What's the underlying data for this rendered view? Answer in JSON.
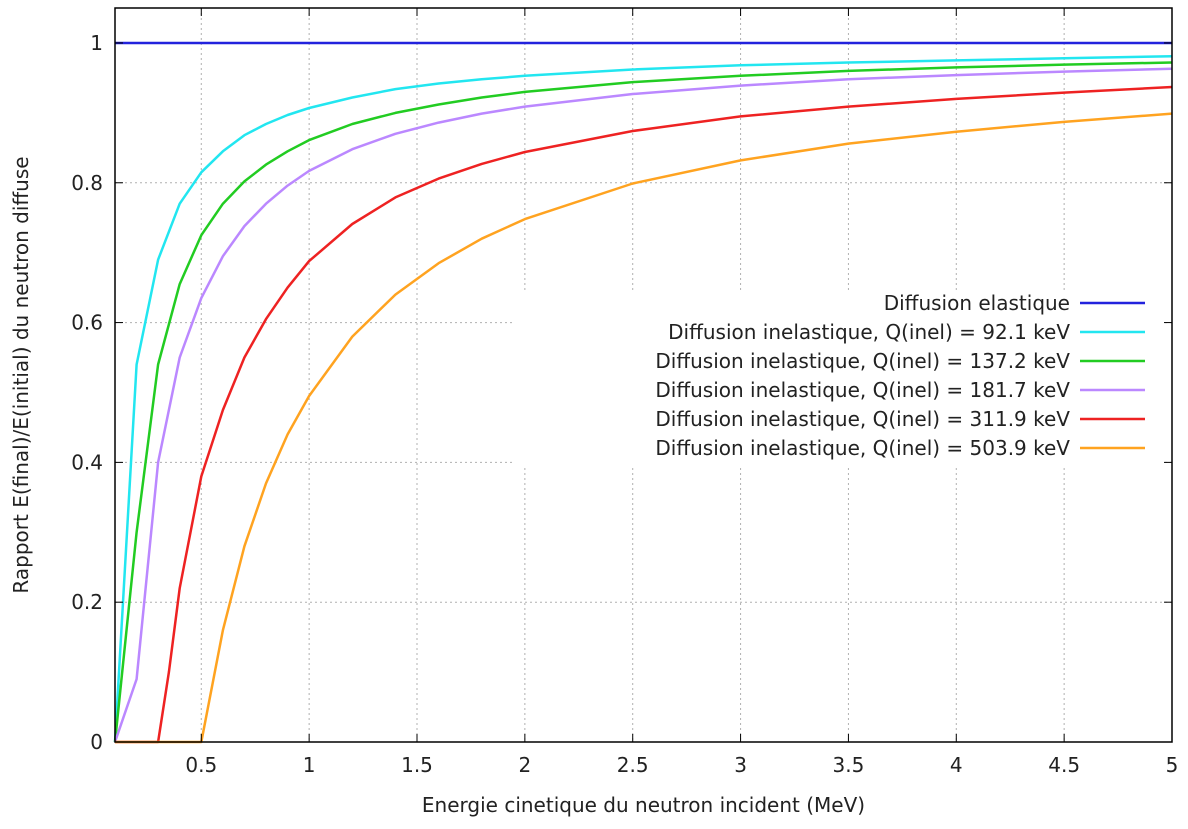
{
  "chart_data": {
    "type": "line",
    "xlabel": "Energie cinetique du neutron incident (MeV)",
    "ylabel": "Rapport E(final)/E(initial) du neutron diffuse",
    "xlim": [
      0.1,
      5
    ],
    "ylim": [
      0,
      1.05
    ],
    "x_ticks": [
      "0.5",
      "1",
      "1.5",
      "2",
      "2.5",
      "3",
      "3.5",
      "4",
      "4.5",
      "5"
    ],
    "y_ticks": [
      "0",
      "0.2",
      "0.4",
      "0.6",
      "0.8",
      "1"
    ],
    "grid": true,
    "legend_position": "center-right",
    "series": [
      {
        "name": "Diffusion elastique",
        "color": "#2222dd",
        "x": [
          0.1,
          5
        ],
        "y": [
          1,
          1
        ]
      },
      {
        "name": "Diffusion inelastique, Q(inel) = 92.1 keV",
        "color": "#22e6f0",
        "x": [
          0.1,
          0.2,
          0.3,
          0.4,
          0.5,
          0.6,
          0.7,
          0.8,
          0.9,
          1.0,
          1.2,
          1.4,
          1.6,
          1.8,
          2.0,
          2.5,
          3.0,
          3.5,
          4.0,
          4.5,
          5.0
        ],
        "y": [
          0.0,
          0.54,
          0.69,
          0.77,
          0.815,
          0.845,
          0.868,
          0.884,
          0.897,
          0.907,
          0.922,
          0.934,
          0.942,
          0.948,
          0.953,
          0.962,
          0.968,
          0.972,
          0.975,
          0.978,
          0.981
        ]
      },
      {
        "name": "Diffusion inelastique, Q(inel) = 137.2 keV",
        "color": "#22cc22",
        "x": [
          0.1,
          0.2,
          0.3,
          0.4,
          0.5,
          0.6,
          0.7,
          0.8,
          0.9,
          1.0,
          1.2,
          1.4,
          1.6,
          1.8,
          2.0,
          2.5,
          3.0,
          3.5,
          4.0,
          4.5,
          5.0
        ],
        "y": [
          0.0,
          0.3,
          0.54,
          0.655,
          0.725,
          0.77,
          0.802,
          0.826,
          0.845,
          0.861,
          0.884,
          0.9,
          0.912,
          0.922,
          0.93,
          0.944,
          0.953,
          0.96,
          0.965,
          0.969,
          0.972
        ]
      },
      {
        "name": "Diffusion inelastique, Q(inel) = 181.7 keV",
        "color": "#bb88ff",
        "x": [
          0.1,
          0.2,
          0.3,
          0.4,
          0.5,
          0.6,
          0.7,
          0.8,
          0.9,
          1.0,
          1.2,
          1.4,
          1.6,
          1.8,
          2.0,
          2.5,
          3.0,
          3.5,
          4.0,
          4.5,
          5.0
        ],
        "y": [
          0.0,
          0.09,
          0.4,
          0.55,
          0.635,
          0.695,
          0.738,
          0.77,
          0.796,
          0.817,
          0.848,
          0.87,
          0.886,
          0.899,
          0.909,
          0.927,
          0.939,
          0.948,
          0.954,
          0.959,
          0.963
        ]
      },
      {
        "name": "Diffusion inelastique, Q(inel) = 311.9 keV",
        "color": "#ee2222",
        "x": [
          0.1,
          0.2,
          0.3,
          0.35,
          0.4,
          0.5,
          0.6,
          0.7,
          0.8,
          0.9,
          1.0,
          1.2,
          1.4,
          1.6,
          1.8,
          2.0,
          2.5,
          3.0,
          3.5,
          4.0,
          4.5,
          5.0
        ],
        "y": [
          0.0,
          0.0,
          0.0,
          0.1,
          0.22,
          0.38,
          0.475,
          0.55,
          0.605,
          0.65,
          0.688,
          0.741,
          0.779,
          0.806,
          0.827,
          0.844,
          0.874,
          0.895,
          0.909,
          0.92,
          0.929,
          0.937
        ]
      },
      {
        "name": "Diffusion inelastique, Q(inel) = 503.9 keV",
        "color": "#ffa320",
        "x": [
          0.1,
          0.3,
          0.5,
          0.6,
          0.7,
          0.8,
          0.9,
          1.0,
          1.2,
          1.4,
          1.6,
          1.8,
          2.0,
          2.5,
          3.0,
          3.5,
          4.0,
          4.5,
          5.0
        ],
        "y": [
          0.0,
          0.0,
          0.0,
          0.16,
          0.28,
          0.37,
          0.44,
          0.495,
          0.58,
          0.64,
          0.685,
          0.72,
          0.748,
          0.799,
          0.832,
          0.856,
          0.873,
          0.887,
          0.899
        ]
      }
    ]
  }
}
